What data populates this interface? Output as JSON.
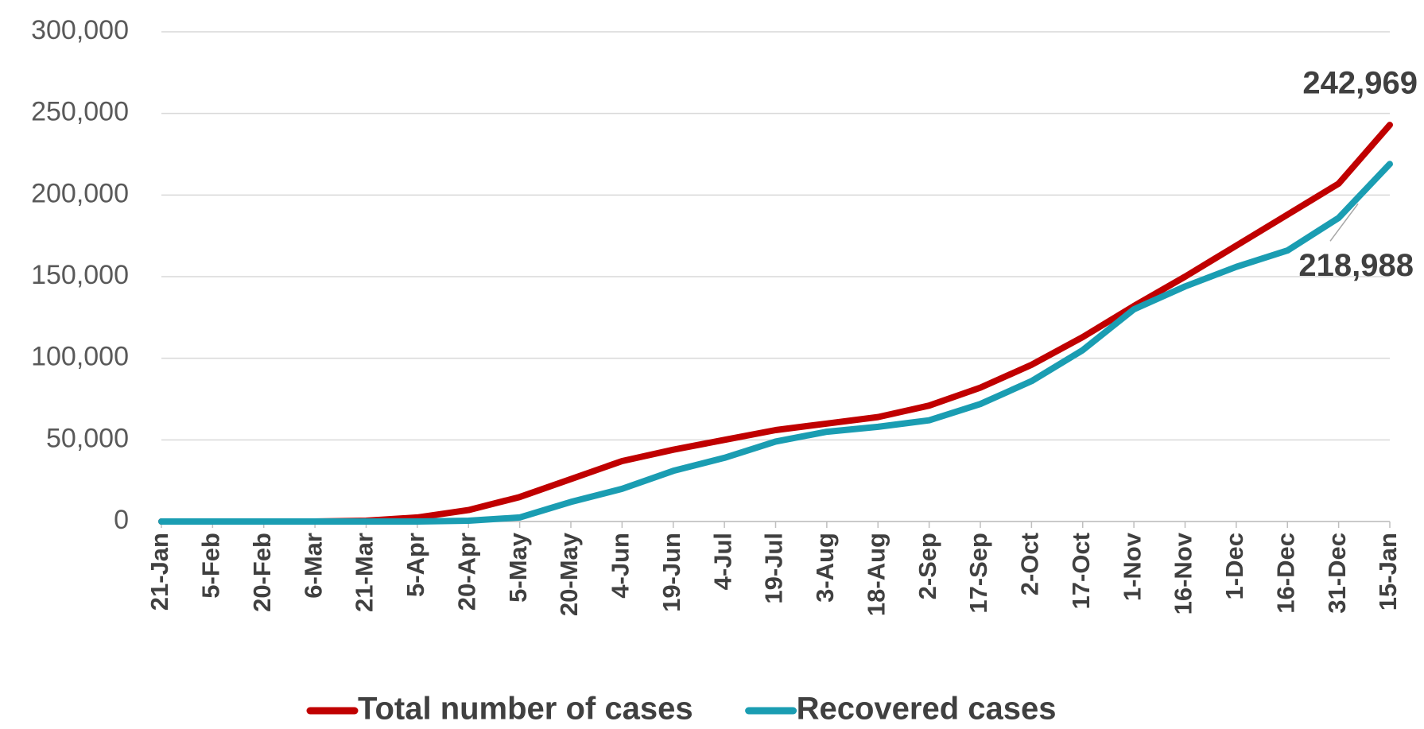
{
  "chart_data": {
    "type": "line",
    "categories": [
      "21-Jan",
      "5-Feb",
      "20-Feb",
      "6-Mar",
      "21-Mar",
      "5-Apr",
      "20-Apr",
      "5-May",
      "20-May",
      "4-Jun",
      "19-Jun",
      "4-Jul",
      "19-Jul",
      "3-Aug",
      "18-Aug",
      "2-Sep",
      "17-Sep",
      "2-Oct",
      "17-Oct",
      "1-Nov",
      "16-Nov",
      "1-Dec",
      "16-Dec",
      "31-Dec",
      "15-Jan"
    ],
    "series": [
      {
        "name": "Total number of cases",
        "color": "#c00000",
        "values": [
          0,
          0,
          0,
          0,
          500,
          2500,
          7000,
          15000,
          26000,
          37000,
          44000,
          50000,
          56000,
          60000,
          64000,
          71000,
          82000,
          96000,
          113000,
          132000,
          150000,
          169000,
          188000,
          207000,
          242969
        ],
        "value_labels": [
          null,
          null,
          null,
          null,
          null,
          null,
          null,
          null,
          null,
          null,
          null,
          null,
          null,
          null,
          null,
          null,
          null,
          null,
          null,
          null,
          null,
          null,
          null,
          null,
          "242,969"
        ]
      },
      {
        "name": "Recovered cases",
        "color": "#1a9db2",
        "values": [
          0,
          0,
          0,
          0,
          0,
          0,
          500,
          2500,
          12000,
          20000,
          31000,
          39000,
          49000,
          55000,
          58000,
          62000,
          72000,
          86000,
          105000,
          130000,
          144000,
          156000,
          166000,
          186000,
          218988
        ],
        "value_labels": [
          null,
          null,
          null,
          null,
          null,
          null,
          null,
          null,
          null,
          null,
          null,
          null,
          null,
          null,
          null,
          null,
          null,
          null,
          null,
          null,
          null,
          null,
          null,
          null,
          "218,988"
        ]
      }
    ],
    "ylim": [
      0,
      300000
    ],
    "yticks": [
      0,
      {
        "value": 50000,
        "label": "50,000"
      },
      {
        "value": 100000,
        "label": "100,000"
      },
      {
        "value": 150000,
        "label": "150,000"
      },
      {
        "value": 200000,
        "label": "200,000"
      },
      {
        "value": 250000,
        "label": "250,000"
      },
      {
        "value": 300000,
        "label": "300,000"
      }
    ],
    "grid": true,
    "legend": "bottom"
  }
}
